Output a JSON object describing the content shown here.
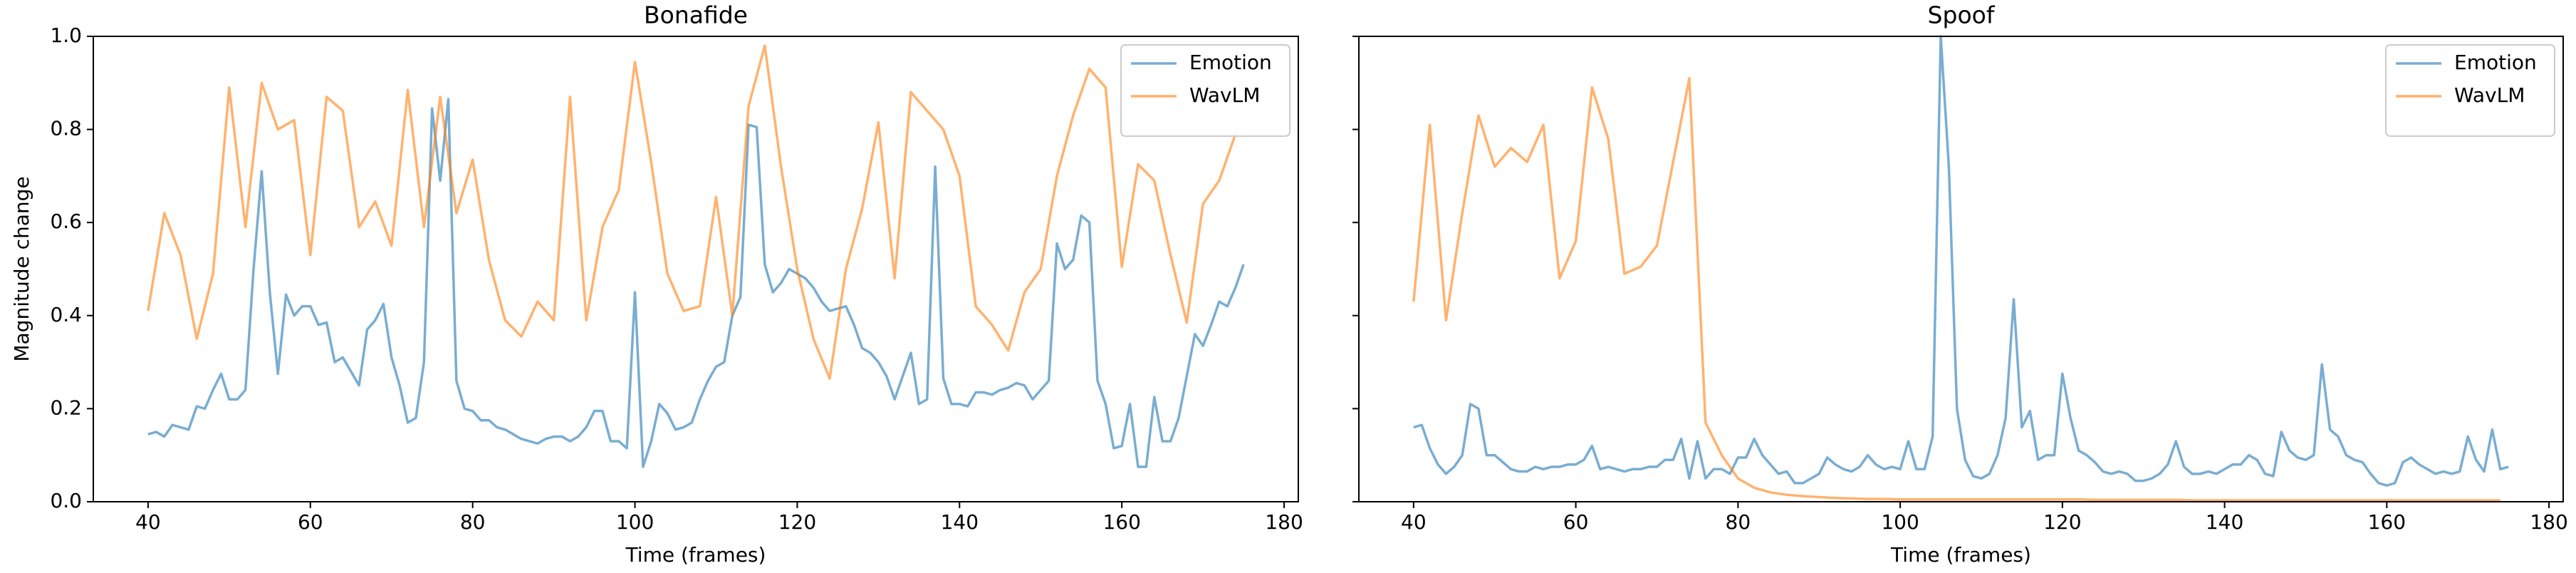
{
  "chart_data": [
    {
      "type": "line",
      "title": "Bonafide",
      "xlabel": "Time (frames)",
      "ylabel": "Magnitude change",
      "xlim": [
        33.25,
        181.75
      ],
      "ylim": [
        0,
        1
      ],
      "xticks": [
        40,
        60,
        80,
        100,
        120,
        140,
        160,
        180
      ],
      "yticks": [
        {
          "value": 0,
          "label": "0.0"
        },
        0.2,
        0.4,
        0.6,
        0.8,
        {
          "value": 1,
          "label": "1.0"
        }
      ],
      "legend": "upper right",
      "series": [
        {
          "name": "Emotion",
          "color": "#1f77b4",
          "x": [
            40,
            41,
            42,
            43,
            44,
            45,
            46,
            47,
            48,
            49,
            50,
            51,
            52,
            53,
            54,
            55,
            56,
            57,
            58,
            59,
            60,
            61,
            62,
            63,
            64,
            65,
            66,
            67,
            68,
            69,
            70,
            71,
            72,
            73,
            74,
            75,
            76,
            77,
            78,
            79,
            80,
            81,
            82,
            83,
            84,
            85,
            86,
            87,
            88,
            89,
            90,
            91,
            92,
            93,
            94,
            95,
            96,
            97,
            98,
            99,
            100,
            101,
            102,
            103,
            104,
            105,
            106,
            107,
            108,
            109,
            110,
            111,
            112,
            113,
            114,
            115,
            116,
            117,
            118,
            119,
            120,
            121,
            122,
            123,
            124,
            125,
            126,
            127,
            128,
            129,
            130,
            131,
            132,
            133,
            134,
            135,
            136,
            137,
            138,
            139,
            140,
            141,
            142,
            143,
            144,
            145,
            146,
            147,
            148,
            149,
            150,
            151,
            152,
            153,
            154,
            155,
            156,
            157,
            158,
            159,
            160,
            161,
            162,
            163,
            164,
            165,
            166,
            167,
            168,
            169,
            170,
            171,
            172,
            173,
            174,
            175
          ],
          "values": [
            0.145,
            0.15,
            0.14,
            0.165,
            0.16,
            0.155,
            0.205,
            0.2,
            0.24,
            0.275,
            0.22,
            0.22,
            0.24,
            0.5,
            0.71,
            0.45,
            0.275,
            0.445,
            0.4,
            0.42,
            0.42,
            0.38,
            0.385,
            0.3,
            0.31,
            0.28,
            0.25,
            0.37,
            0.39,
            0.425,
            0.31,
            0.25,
            0.17,
            0.18,
            0.3,
            0.845,
            0.69,
            0.865,
            0.26,
            0.2,
            0.195,
            0.175,
            0.175,
            0.16,
            0.155,
            0.145,
            0.135,
            0.13,
            0.125,
            0.135,
            0.14,
            0.14,
            0.13,
            0.14,
            0.16,
            0.195,
            0.195,
            0.13,
            0.13,
            0.115,
            0.45,
            0.075,
            0.13,
            0.21,
            0.19,
            0.155,
            0.16,
            0.17,
            0.22,
            0.26,
            0.29,
            0.3,
            0.4,
            0.44,
            0.81,
            0.805,
            0.51,
            0.45,
            0.47,
            0.5,
            0.49,
            0.48,
            0.46,
            0.43,
            0.41,
            0.415,
            0.42,
            0.38,
            0.33,
            0.32,
            0.3,
            0.27,
            0.22,
            0.27,
            0.32,
            0.21,
            0.22,
            0.72,
            0.265,
            0.21,
            0.21,
            0.205,
            0.235,
            0.235,
            0.23,
            0.24,
            0.245,
            0.255,
            0.25,
            0.22,
            0.24,
            0.26,
            0.555,
            0.5,
            0.52,
            0.615,
            0.6,
            0.26,
            0.21,
            0.115,
            0.12,
            0.21,
            0.075,
            0.075,
            0.225,
            0.13,
            0.13,
            0.18,
            0.27,
            0.36,
            0.335,
            0.38,
            0.43,
            0.42,
            0.46,
            0.51
          ]
        },
        {
          "name": "WavLM",
          "color": "#ff7f0e",
          "x": [
            40,
            42,
            44,
            46,
            48,
            50,
            52,
            54,
            56,
            58,
            60,
            62,
            64,
            66,
            68,
            70,
            72,
            74,
            76,
            78,
            80,
            82,
            84,
            86,
            88,
            90,
            92,
            94,
            96,
            98,
            100,
            102,
            104,
            106,
            108,
            110,
            112,
            114,
            116,
            118,
            120,
            122,
            124,
            126,
            128,
            130,
            132,
            134,
            136,
            138,
            140,
            142,
            144,
            146,
            148,
            150,
            152,
            154,
            156,
            158,
            160,
            162,
            164,
            166,
            168,
            170,
            172,
            174
          ],
          "values": [
            0.41,
            0.62,
            0.53,
            0.35,
            0.49,
            0.89,
            0.59,
            0.9,
            0.8,
            0.82,
            0.53,
            0.87,
            0.84,
            0.59,
            0.645,
            0.55,
            0.885,
            0.59,
            0.87,
            0.62,
            0.735,
            0.52,
            0.39,
            0.355,
            0.43,
            0.39,
            0.87,
            0.39,
            0.59,
            0.67,
            0.945,
            0.73,
            0.49,
            0.41,
            0.42,
            0.655,
            0.4,
            0.85,
            0.98,
            0.72,
            0.5,
            0.35,
            0.265,
            0.5,
            0.63,
            0.815,
            0.48,
            0.88,
            0.84,
            0.8,
            0.7,
            0.42,
            0.38,
            0.325,
            0.45,
            0.5,
            0.7,
            0.83,
            0.93,
            0.89,
            0.505,
            0.725,
            0.69,
            0.53,
            0.385,
            0.64,
            0.69,
            0.79
          ]
        }
      ]
    },
    {
      "type": "line",
      "title": "Spoof",
      "xlabel": "Time (frames)",
      "sharey": true,
      "xlim": [
        33.25,
        181.75
      ],
      "ylim": [
        0,
        1
      ],
      "xticks": [
        40,
        60,
        80,
        100,
        120,
        140,
        160,
        180
      ],
      "yticks": [
        0,
        0.2,
        0.4,
        0.6,
        0.8,
        1
      ],
      "legend": "upper right",
      "series": [
        {
          "name": "Emotion",
          "color": "#1f77b4",
          "x": [
            40,
            41,
            42,
            43,
            44,
            45,
            46,
            47,
            48,
            49,
            50,
            51,
            52,
            53,
            54,
            55,
            56,
            57,
            58,
            59,
            60,
            61,
            62,
            63,
            64,
            65,
            66,
            67,
            68,
            69,
            70,
            71,
            72,
            73,
            74,
            75,
            76,
            77,
            78,
            79,
            80,
            81,
            82,
            83,
            84,
            85,
            86,
            87,
            88,
            89,
            90,
            91,
            92,
            93,
            94,
            95,
            96,
            97,
            98,
            99,
            100,
            101,
            102,
            103,
            104,
            105,
            106,
            107,
            108,
            109,
            110,
            111,
            112,
            113,
            114,
            115,
            116,
            117,
            118,
            119,
            120,
            121,
            122,
            123,
            124,
            125,
            126,
            127,
            128,
            129,
            130,
            131,
            132,
            133,
            134,
            135,
            136,
            137,
            138,
            139,
            140,
            141,
            142,
            143,
            144,
            145,
            146,
            147,
            148,
            149,
            150,
            151,
            152,
            153,
            154,
            155,
            156,
            157,
            158,
            159,
            160,
            161,
            162,
            163,
            164,
            165,
            166,
            167,
            168,
            169,
            170,
            171,
            172,
            173,
            174,
            175
          ],
          "values": [
            0.16,
            0.165,
            0.115,
            0.08,
            0.06,
            0.075,
            0.1,
            0.21,
            0.2,
            0.1,
            0.1,
            0.085,
            0.07,
            0.065,
            0.065,
            0.075,
            0.07,
            0.075,
            0.075,
            0.08,
            0.08,
            0.09,
            0.12,
            0.07,
            0.075,
            0.07,
            0.065,
            0.07,
            0.07,
            0.075,
            0.075,
            0.09,
            0.09,
            0.135,
            0.05,
            0.13,
            0.05,
            0.07,
            0.07,
            0.06,
            0.095,
            0.095,
            0.135,
            0.1,
            0.08,
            0.06,
            0.065,
            0.04,
            0.04,
            0.05,
            0.06,
            0.095,
            0.08,
            0.07,
            0.065,
            0.075,
            0.1,
            0.08,
            0.07,
            0.075,
            0.07,
            0.13,
            0.07,
            0.07,
            0.14,
            1.0,
            0.72,
            0.2,
            0.09,
            0.055,
            0.05,
            0.06,
            0.1,
            0.18,
            0.435,
            0.16,
            0.195,
            0.09,
            0.1,
            0.1,
            0.275,
            0.18,
            0.11,
            0.1,
            0.085,
            0.065,
            0.06,
            0.065,
            0.06,
            0.045,
            0.045,
            0.05,
            0.06,
            0.08,
            0.13,
            0.075,
            0.06,
            0.06,
            0.065,
            0.06,
            0.07,
            0.08,
            0.08,
            0.1,
            0.09,
            0.06,
            0.055,
            0.15,
            0.11,
            0.095,
            0.09,
            0.1,
            0.295,
            0.155,
            0.14,
            0.1,
            0.09,
            0.085,
            0.06,
            0.04,
            0.035,
            0.04,
            0.085,
            0.095,
            0.08,
            0.07,
            0.06,
            0.065,
            0.06,
            0.065,
            0.14,
            0.09,
            0.065,
            0.155,
            0.07,
            0.075
          ]
        },
        {
          "name": "WavLM",
          "color": "#ff7f0e",
          "x": [
            40,
            42,
            44,
            46,
            48,
            50,
            52,
            54,
            56,
            58,
            60,
            62,
            64,
            66,
            68,
            70,
            72,
            74,
            76,
            78,
            80,
            82,
            84,
            86,
            88,
            90,
            92,
            94,
            96,
            98,
            100,
            102,
            104,
            106,
            108,
            110,
            112,
            114,
            116,
            118,
            120,
            122,
            124,
            126,
            128,
            130,
            132,
            134,
            136,
            138,
            140,
            142,
            144,
            146,
            148,
            150,
            152,
            154,
            156,
            158,
            160,
            162,
            164,
            166,
            168,
            170,
            172,
            174
          ],
          "values": [
            0.43,
            0.81,
            0.39,
            0.62,
            0.83,
            0.72,
            0.76,
            0.73,
            0.81,
            0.48,
            0.56,
            0.89,
            0.78,
            0.49,
            0.505,
            0.55,
            0.73,
            0.91,
            0.17,
            0.1,
            0.05,
            0.03,
            0.02,
            0.015,
            0.012,
            0.01,
            0.008,
            0.007,
            0.006,
            0.006,
            0.005,
            0.005,
            0.005,
            0.005,
            0.005,
            0.005,
            0.005,
            0.005,
            0.005,
            0.005,
            0.005,
            0.005,
            0.004,
            0.004,
            0.004,
            0.004,
            0.004,
            0.004,
            0.003,
            0.003,
            0.003,
            0.003,
            0.003,
            0.003,
            0.003,
            0.003,
            0.003,
            0.003,
            0.003,
            0.003,
            0.003,
            0.003,
            0.003,
            0.003,
            0.003,
            0.003,
            0.003,
            0.003
          ]
        }
      ]
    }
  ]
}
